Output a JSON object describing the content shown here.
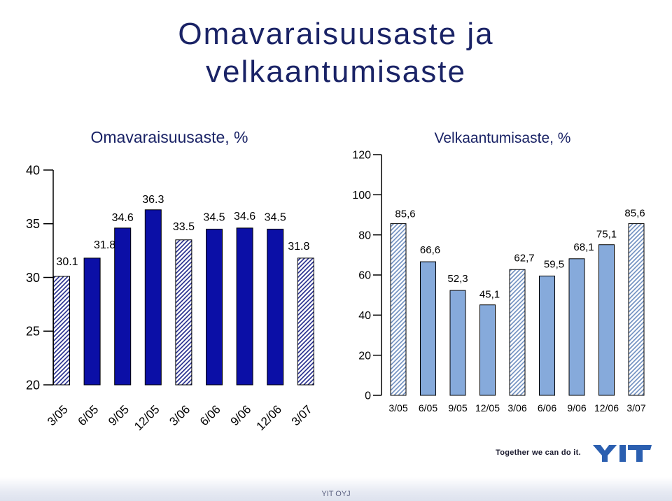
{
  "title": {
    "line1": "Omavaraisuusaste ja",
    "line2": "velkaantumisaste"
  },
  "chart_data": [
    {
      "type": "bar",
      "title": "Omavaraisuusaste, %",
      "categories": [
        "3/05",
        "6/05",
        "9/05",
        "12/05",
        "3/06",
        "6/06",
        "9/06",
        "12/06",
        "3/07"
      ],
      "values": [
        30.1,
        31.8,
        34.6,
        36.3,
        33.5,
        34.5,
        34.6,
        34.5,
        31.8
      ],
      "value_labels": [
        "30.1",
        "31.8",
        "34.6",
        "36.3",
        "33.5",
        "34.5",
        "34.6",
        "34.5",
        "31.8"
      ],
      "ylim": [
        20,
        40
      ],
      "yticks": [
        20,
        25,
        30,
        35,
        40
      ],
      "grid": false,
      "bar_styles": [
        "hatched",
        "solid",
        "solid",
        "solid",
        "hatched",
        "solid",
        "solid",
        "solid",
        "hatched"
      ],
      "colors": {
        "solid": "#0b0fa6",
        "hatch": "#232a8c"
      }
    },
    {
      "type": "bar",
      "title": "Velkaantumisaste, %",
      "categories": [
        "3/05",
        "6/05",
        "9/05",
        "12/05",
        "3/06",
        "6/06",
        "9/06",
        "12/06",
        "3/07"
      ],
      "values": [
        85.6,
        66.6,
        52.3,
        45.1,
        62.7,
        59.5,
        68.1,
        75.1,
        85.6
      ],
      "value_labels": [
        "85,6",
        "66,6",
        "52,3",
        "45,1",
        "62,7",
        "59,5",
        "68,1",
        "75,1",
        "85,6"
      ],
      "ylim": [
        0,
        120
      ],
      "yticks": [
        0,
        20,
        40,
        60,
        80,
        100,
        120
      ],
      "grid": false,
      "bar_styles": [
        "hatched",
        "solid",
        "solid",
        "solid",
        "hatched",
        "solid",
        "solid",
        "solid",
        "hatched"
      ],
      "colors": {
        "solid": "#86aadb",
        "hatch": "#6f8fc0"
      }
    }
  ],
  "branding": {
    "tagline": "Together we can do it.",
    "logo_text": "YIT",
    "logo_color": "#2b5fb0"
  },
  "footer": {
    "text": "YIT OYJ"
  }
}
